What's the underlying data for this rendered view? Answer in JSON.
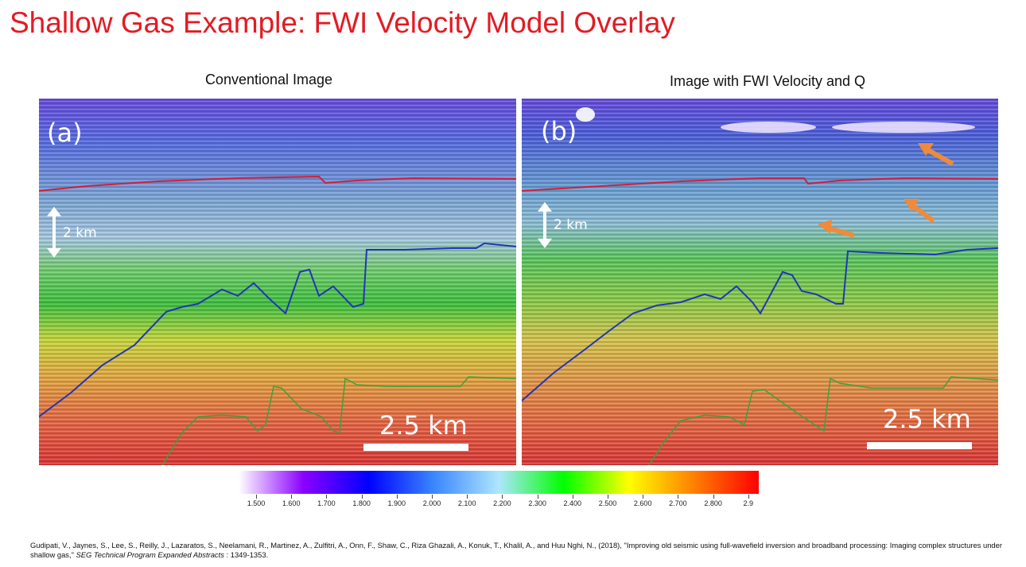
{
  "title": "Shallow Gas Example:  FWI Velocity Model Overlay",
  "panels": [
    {
      "heading": "Conventional Image",
      "tag": "(a)",
      "vertical_scale": "2 km",
      "horizontal_scale": "2.5 km"
    },
    {
      "heading": "Image with FWI Velocity and Q",
      "tag": "(b)",
      "vertical_scale": "2 km",
      "horizontal_scale": "2.5 km"
    }
  ],
  "colorbar": {
    "ticks": [
      "1.500",
      "1.600",
      "1.700",
      "1.800",
      "1.900",
      "2.000",
      "2.100",
      "2.200",
      "2.300",
      "2.400",
      "2.500",
      "2.600",
      "2.700",
      "2.800",
      "2.9"
    ],
    "colors": [
      "#ffffff",
      "#8a00ff",
      "#0000ff",
      "#3a86ff",
      "#aee6ff",
      "#00ff00",
      "#ffff00",
      "#ff8000",
      "#ff0000"
    ]
  },
  "citation": {
    "authors": "Gudipati, V., Jaynes, S., Lee, S., Reilly, J., Lazaratos, S., Neelamani, R., Martinez, A., Zulfitri, A., Onn, F., Shaw, C., Riza Ghazali, A., Konuk, T., Khalil, A., and Huu Nghi, N., (2018), \"Improving old seismic using full-wavefield inversion and broadband processing: Imaging complex structures under shallow gas,\"",
    "journal": "SEG Technical Program Expanded Abstracts",
    "pages": ": 1349-1353."
  }
}
